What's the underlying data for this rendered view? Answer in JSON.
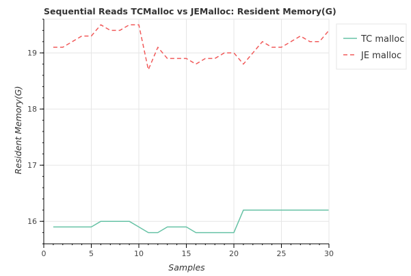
{
  "chart_data": {
    "type": "line",
    "title": "Sequential Reads TCMalloc vs JEMalloc: Resident Memory(G)",
    "xlabel": "Samples",
    "ylabel": "Resident Memory(G)",
    "xlim": [
      0,
      30
    ],
    "ylim": [
      15.6,
      19.6
    ],
    "xticks": [
      0,
      5,
      10,
      15,
      20,
      25,
      30
    ],
    "yticks": [
      16,
      17,
      18,
      19
    ],
    "grid": true,
    "legend_position": "right",
    "x": [
      1,
      2,
      3,
      4,
      5,
      6,
      7,
      8,
      9,
      10,
      11,
      12,
      13,
      14,
      15,
      16,
      17,
      18,
      19,
      20,
      21,
      22,
      23,
      24,
      25,
      26,
      27,
      28,
      29,
      30
    ],
    "series": [
      {
        "name": "TC malloc",
        "color": "#66c2a5",
        "dash": "solid",
        "values": [
          15.9,
          15.9,
          15.9,
          15.9,
          15.9,
          16.0,
          16.0,
          16.0,
          16.0,
          15.9,
          15.8,
          15.8,
          15.9,
          15.9,
          15.9,
          15.8,
          15.8,
          15.8,
          15.8,
          15.8,
          16.2,
          16.2,
          16.2,
          16.2,
          16.2,
          16.2,
          16.2,
          16.2,
          16.2,
          16.2
        ]
      },
      {
        "name": "JE malloc",
        "color": "#f15a5a",
        "dash": "dashed",
        "values": [
          19.1,
          19.1,
          19.2,
          19.3,
          19.3,
          19.5,
          19.4,
          19.4,
          19.5,
          19.5,
          18.7,
          19.1,
          18.9,
          18.9,
          18.9,
          18.8,
          18.9,
          18.9,
          19.0,
          19.0,
          18.8,
          19.0,
          19.2,
          19.1,
          19.1,
          19.2,
          19.3,
          19.2,
          19.2,
          19.4
        ]
      }
    ]
  }
}
